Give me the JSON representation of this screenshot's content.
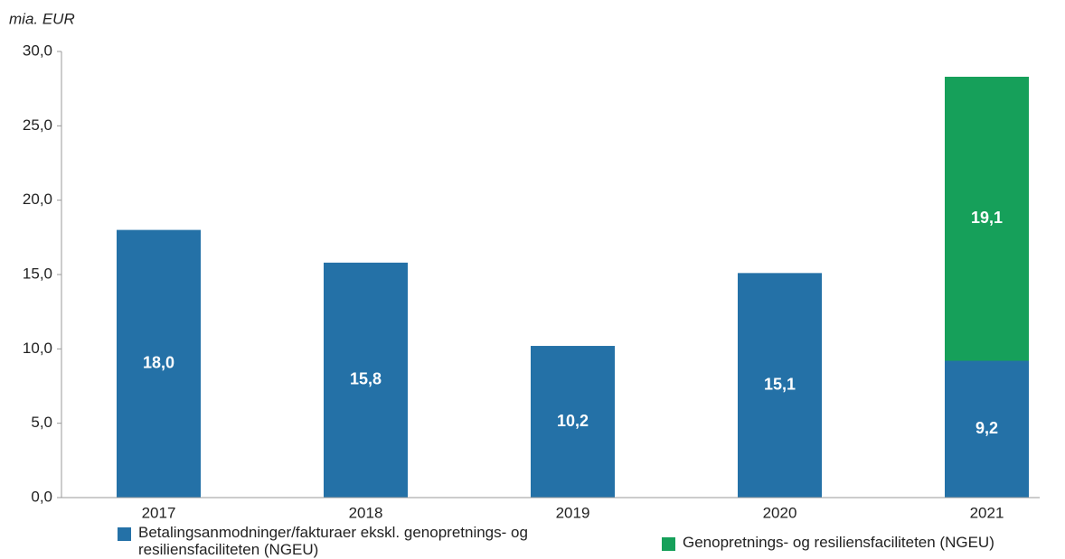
{
  "chart_data": {
    "type": "stacked-bar",
    "y_unit_label": "mia. EUR",
    "categories": [
      "2017",
      "2018",
      "2019",
      "2020",
      "2021"
    ],
    "series": [
      {
        "name": "Betalingsanmodninger/fakturaer ekskl. genopretnings- og resiliensfaciliteten (NGEU)",
        "color": "#2471a7",
        "values": [
          18.0,
          15.8,
          10.2,
          15.1,
          9.2
        ],
        "value_labels": [
          "18,0",
          "15,8",
          "10,2",
          "15,1",
          "9,2"
        ]
      },
      {
        "name": "Genopretnings- og resiliensfaciliteten (NGEU)",
        "color": "#16a05a",
        "values": [
          null,
          null,
          null,
          null,
          19.1
        ],
        "value_labels": [
          null,
          null,
          null,
          null,
          "19,1"
        ]
      }
    ],
    "ylim": [
      0,
      30
    ],
    "yticks": [
      {
        "value": 0,
        "label": "0,0"
      },
      {
        "value": 5,
        "label": "5,0"
      },
      {
        "value": 10,
        "label": "10,0"
      },
      {
        "value": 15,
        "label": "15,0"
      },
      {
        "value": 20,
        "label": "20,0"
      },
      {
        "value": 25,
        "label": "25,0"
      },
      {
        "value": 30,
        "label": "30,0"
      }
    ],
    "grid": false
  }
}
